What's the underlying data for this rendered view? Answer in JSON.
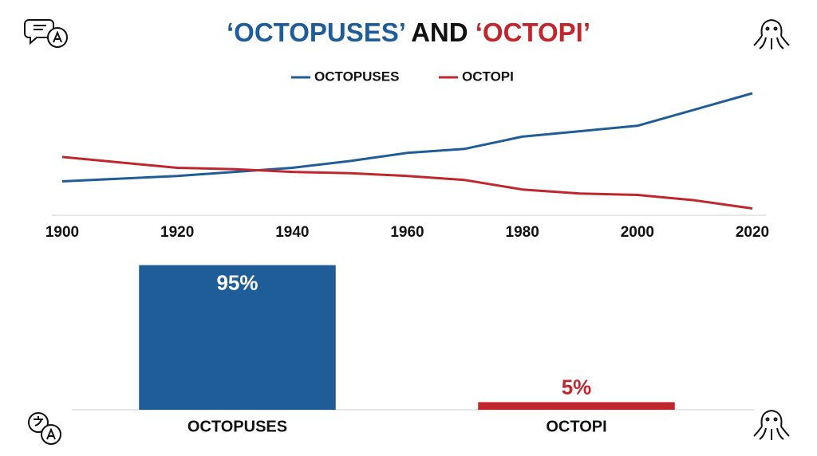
{
  "header": {
    "title": [
      "‘OCTOPUSES’",
      "AND",
      "‘OCTOPI’"
    ]
  },
  "chart_data": [
    {
      "type": "line",
      "x": [
        1900,
        1910,
        1920,
        1930,
        1940,
        1950,
        1960,
        1970,
        1980,
        1990,
        2000,
        2010,
        2020
      ],
      "xlim": [
        1900,
        2020
      ],
      "xticks": [
        1900,
        1920,
        1940,
        1960,
        1980,
        2000,
        2020
      ],
      "ylim": [
        0,
        100
      ],
      "series": [
        {
          "name": "OCTOPUSES",
          "color": "#1f5d99",
          "values": [
            25,
            27,
            29,
            32,
            35,
            40,
            46,
            49,
            58,
            62,
            66,
            78,
            90
          ]
        },
        {
          "name": "OCTOPI",
          "color": "#c0262d",
          "values": [
            43,
            39,
            35,
            34,
            32,
            31,
            29,
            26,
            19,
            16,
            15,
            11,
            5
          ]
        }
      ]
    },
    {
      "type": "bar",
      "categories": [
        "OCTOPUSES",
        "OCTOPI"
      ],
      "values": [
        95,
        5
      ],
      "value_labels": [
        "95%",
        "5%"
      ],
      "colors": [
        "#1f5d99",
        "#c0262d"
      ],
      "ylim": [
        0,
        100
      ]
    }
  ]
}
